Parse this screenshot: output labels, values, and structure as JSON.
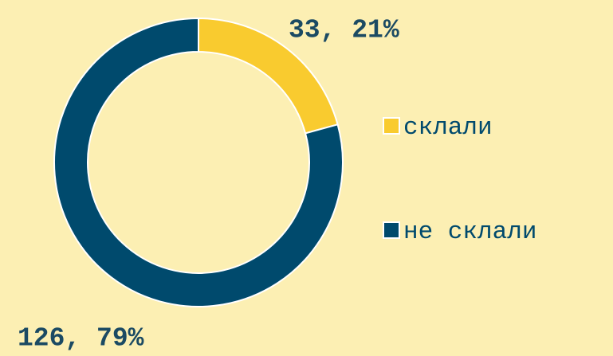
{
  "chart_data": {
    "type": "donut",
    "categories": [
      "склали",
      "не склали"
    ],
    "values": [
      33,
      126
    ],
    "value_labels": [
      "33, 21%",
      "126, 79%"
    ],
    "colors": [
      "#f9cb2f",
      "#004a6d"
    ],
    "legend": "right"
  }
}
